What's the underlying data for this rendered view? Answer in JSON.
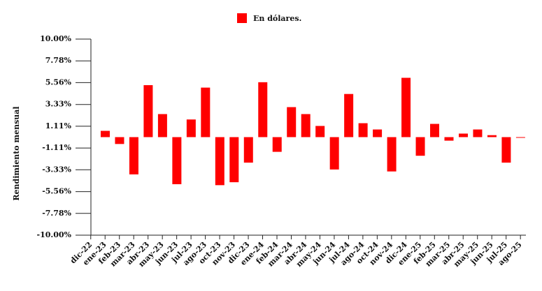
{
  "chart_data": {
    "type": "bar",
    "legend": "En dólares.",
    "y_label": "Rendimiento mensual",
    "color": "#ff0000",
    "categories": [
      "dic-22",
      "ene-23",
      "feb-23",
      "mar-23",
      "abr-23",
      "may-23",
      "jun-23",
      "jul-23",
      "ago-23",
      "oct-23",
      "nov-23",
      "dic-23",
      "ene-24",
      "feb-24",
      "mar-24",
      "abr-24",
      "may-24",
      "jun-24",
      "jul-24",
      "ago-24",
      "oct-24",
      "nov-24",
      "dic-24",
      "ene-25",
      "feb-25",
      "mar-25",
      "abr-25",
      "may-25",
      "jun-25",
      "jul-25",
      "ago-25"
    ],
    "values": [
      null,
      0.64,
      -0.7,
      -3.8,
      5.3,
      2.35,
      -4.8,
      1.8,
      5.05,
      -4.9,
      -4.6,
      -2.6,
      5.6,
      -1.5,
      3.06,
      2.35,
      1.14,
      -3.3,
      4.4,
      1.42,
      0.78,
      -3.5,
      6.05,
      -1.9,
      1.35,
      -0.36,
      0.36,
      0.78,
      0.2,
      -2.6,
      -0.05
    ],
    "ylim": [
      -10,
      10
    ],
    "yticks": [
      {
        "value": 10,
        "label": "10.00%"
      },
      {
        "value": 7.78,
        "label": "7.78%"
      },
      {
        "value": 5.56,
        "label": "5.56%"
      },
      {
        "value": 3.33,
        "label": "3.33%"
      },
      {
        "value": 1.11,
        "label": "1.11%"
      },
      {
        "value": -1.11,
        "label": "-1.11%"
      },
      {
        "value": -3.33,
        "label": "-3.33%"
      },
      {
        "value": -5.56,
        "label": "-5.56%"
      },
      {
        "value": -7.78,
        "label": "-7.78%"
      },
      {
        "value": -10,
        "label": "-10.00%"
      }
    ],
    "grid": false
  }
}
